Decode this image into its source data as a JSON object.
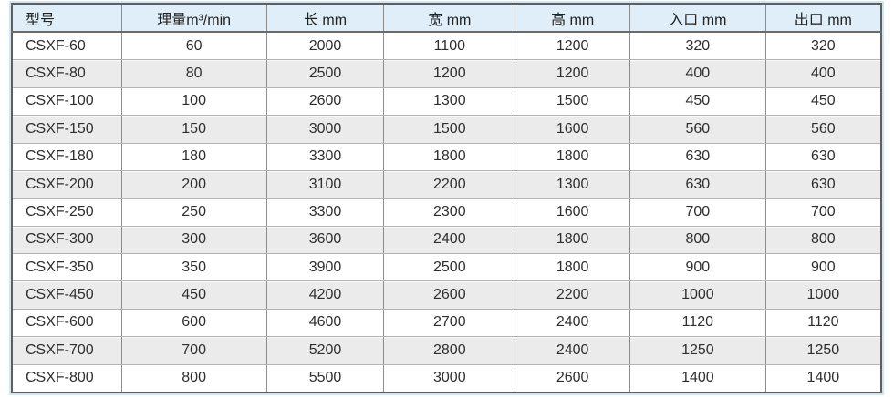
{
  "chart_data": {
    "type": "table",
    "columns": [
      {
        "key": "model",
        "label": "型号"
      },
      {
        "key": "capacity",
        "label": "理量m³/min"
      },
      {
        "key": "length",
        "label": "长 mm"
      },
      {
        "key": "width",
        "label": "宽 mm"
      },
      {
        "key": "height",
        "label": "高 mm"
      },
      {
        "key": "inlet",
        "label": "入口 mm"
      },
      {
        "key": "outlet",
        "label": "出口 mm"
      }
    ],
    "rows": [
      [
        "CSXF-60",
        "60",
        "2000",
        "1100",
        "1200",
        "320",
        "320"
      ],
      [
        "CSXF-80",
        "80",
        "2500",
        "1200",
        "1200",
        "400",
        "400"
      ],
      [
        "CSXF-100",
        "100",
        "2600",
        "1300",
        "1500",
        "450",
        "450"
      ],
      [
        "CSXF-150",
        "150",
        "3000",
        "1500",
        "1600",
        "560",
        "560"
      ],
      [
        "CSXF-180",
        "180",
        "3300",
        "1800",
        "1800",
        "630",
        "630"
      ],
      [
        "CSXF-200",
        "200",
        "3100",
        "2200",
        "1300",
        "630",
        "630"
      ],
      [
        "CSXF-250",
        "250",
        "3300",
        "2300",
        "1600",
        "700",
        "700"
      ],
      [
        "CSXF-300",
        "300",
        "3600",
        "2400",
        "1800",
        "800",
        "800"
      ],
      [
        "CSXF-350",
        "350",
        "3900",
        "2500",
        "1800",
        "900",
        "900"
      ],
      [
        "CSXF-450",
        "450",
        "4200",
        "2600",
        "2200",
        "1000",
        "1000"
      ],
      [
        "CSXF-600",
        "600",
        "4600",
        "2700",
        "2400",
        "1120",
        "1120"
      ],
      [
        "CSXF-700",
        "700",
        "5200",
        "2800",
        "2400",
        "1250",
        "1250"
      ],
      [
        "CSXF-800",
        "800",
        "5500",
        "3000",
        "2600",
        "1400",
        "1400"
      ]
    ],
    "column_width_percents": [
      12.6,
      16.7,
      13.5,
      15.1,
      13.2,
      15.6,
      13.3
    ]
  },
  "colors": {
    "header_bg": "#dfeef8",
    "stripe_bg": "#ebebeb",
    "row_bg": "#ffffff",
    "halo": "#cfe6f4",
    "grid_line": "#8d8d8d",
    "outer_border": "#5f5f5f",
    "text": "#2e2e2e"
  }
}
